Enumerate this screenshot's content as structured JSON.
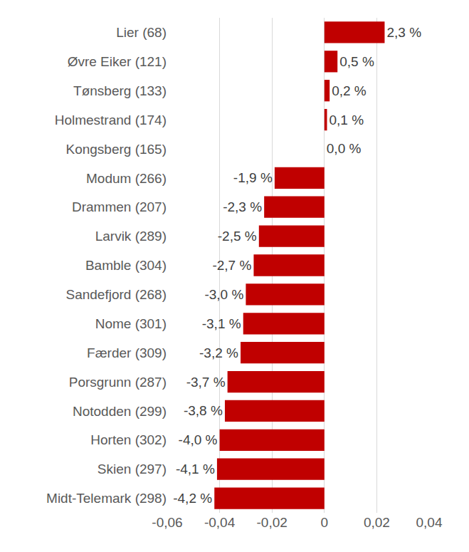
{
  "chart_data": {
    "type": "bar",
    "orientation": "horizontal",
    "categories": [
      "Lier (68)",
      "Øvre Eiker (121)",
      "Tønsberg (133)",
      "Holmestrand (174)",
      "Kongsberg (165)",
      "Modum (266)",
      "Drammen (207)",
      "Larvik (289)",
      "Bamble (304)",
      "Sandefjord (268)",
      "Nome (301)",
      "Færder (309)",
      "Porsgrunn (287)",
      "Notodden (299)",
      "Horten (302)",
      "Skien (297)",
      "Midt-Telemark (298)"
    ],
    "values": [
      0.023,
      0.005,
      0.002,
      0.001,
      0.0,
      -0.019,
      -0.023,
      -0.025,
      -0.027,
      -0.03,
      -0.031,
      -0.032,
      -0.037,
      -0.038,
      -0.04,
      -0.041,
      -0.042
    ],
    "value_labels": [
      "2,3 %",
      "0,5 %",
      "0,2 %",
      "0,1 %",
      "0,0 %",
      "-1,9 %",
      "-2,3 %",
      "-2,5 %",
      "-2,7 %",
      "-3,0 %",
      "-3,1 %",
      "-3,2 %",
      "-3,7 %",
      "-3,8 %",
      "-4,0 %",
      "-4,1 %",
      "-4,2 %"
    ],
    "data_labels": true,
    "color": "#c00000",
    "xlim": [
      -0.06,
      0.04
    ],
    "xticks": [
      {
        "value": -0.06,
        "label": "-0,06"
      },
      {
        "value": -0.04,
        "label": "-0,04"
      },
      {
        "value": -0.02,
        "label": "-0,02"
      },
      0,
      {
        "value": 0.02,
        "label": "0,02"
      },
      {
        "value": 0.04,
        "label": "0,04"
      }
    ],
    "grid": true
  }
}
